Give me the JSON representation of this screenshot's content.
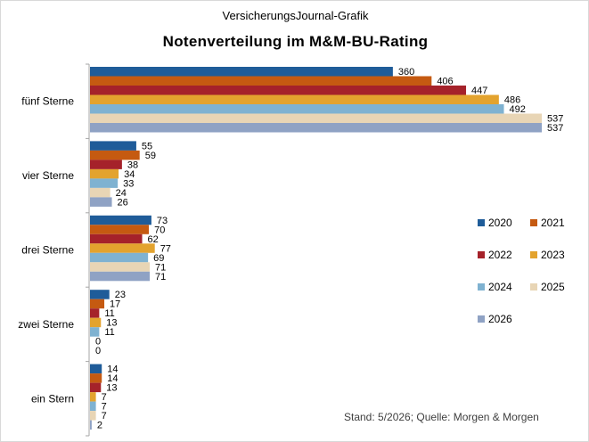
{
  "header": {
    "source": "VersicherungsJournal-Grafik",
    "title": "Notenverteilung im M&M-BU-Rating"
  },
  "footnote": "Stand: 5/2026; Quelle: Morgen & Morgen",
  "colors": {
    "2020": "#1F5C99",
    "2021": "#C55A11",
    "2022": "#A5222A",
    "2023": "#E3A32E",
    "2024": "#7FB2D1",
    "2025": "#E8D5B5",
    "2026": "#8FA2C4"
  },
  "chart_data": {
    "type": "bar",
    "orientation": "horizontal",
    "title": "Notenverteilung im M&M-BU-Rating",
    "categories": [
      "fünf Sterne",
      "vier Sterne",
      "drei Sterne",
      "zwei Sterne",
      "ein Stern"
    ],
    "series": [
      {
        "name": "2020",
        "values": [
          360,
          55,
          73,
          23,
          14
        ]
      },
      {
        "name": "2021",
        "values": [
          406,
          59,
          70,
          17,
          14
        ]
      },
      {
        "name": "2022",
        "values": [
          447,
          38,
          62,
          11,
          13
        ]
      },
      {
        "name": "2023",
        "values": [
          486,
          34,
          77,
          13,
          7
        ]
      },
      {
        "name": "2024",
        "values": [
          492,
          33,
          69,
          11,
          7
        ]
      },
      {
        "name": "2025",
        "values": [
          537,
          24,
          71,
          0,
          7
        ]
      },
      {
        "name": "2026",
        "values": [
          537,
          26,
          71,
          0,
          2
        ]
      }
    ],
    "xlim": [
      0,
      537
    ],
    "grid": false,
    "legend_position": "right",
    "data_labels": true
  }
}
